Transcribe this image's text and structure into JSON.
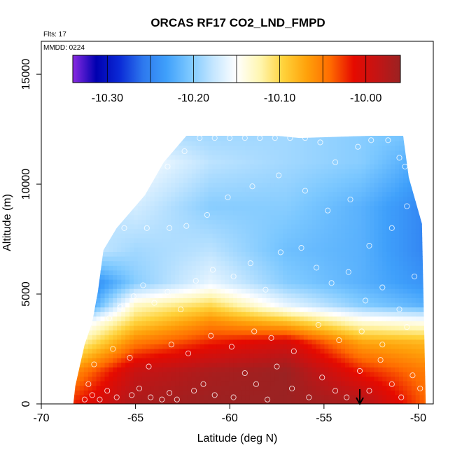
{
  "chart_data": {
    "type": "heatmap",
    "title": "ORCAS RF17 CO2_LND_FMPD",
    "subtitle_flights": "Flts: 17",
    "subtitle_date": "MMDD: 0224",
    "xlabel": "Latitude (deg N)",
    "ylabel": "Altitude (m)",
    "xlim": [
      -70,
      -49.2
    ],
    "ylim": [
      0,
      16500
    ],
    "x_ticks": [
      -70,
      -65,
      -60,
      -55,
      -50
    ],
    "x_tick_labels": [
      "-70",
      "-65",
      "-60",
      "-55",
      "-50"
    ],
    "y_ticks": [
      0,
      5000,
      10000,
      15000
    ],
    "y_tick_labels": [
      "0",
      "5000",
      "10000",
      "15000"
    ],
    "colorbar": {
      "range": [
        -10.34,
        -9.96
      ],
      "ticks": [
        -10.3,
        -10.2,
        -10.1,
        -10.0
      ],
      "tick_labels": [
        "-10.30",
        "-10.20",
        "-10.10",
        "-10.00"
      ],
      "colors": [
        "#8a2be2",
        "#0000b0",
        "#0a2ad6",
        "#2d78ee",
        "#3fa0fb",
        "#7cc8ff",
        "#c4e6ff",
        "#ffffff",
        "#fff6b0",
        "#ffd23a",
        "#ffa10a",
        "#ff6b00",
        "#e60a00",
        "#c41414",
        "#9b2222"
      ],
      "dividers": [
        -10.3,
        -10.25,
        -10.2,
        -10.15,
        -10.1,
        -10.05,
        -10.0
      ]
    },
    "domain_top": [
      [
        -68.3,
        0
      ],
      [
        -68.2,
        800
      ],
      [
        -67.7,
        2700
      ],
      [
        -67.3,
        3700
      ],
      [
        -67.0,
        5100
      ],
      [
        -66.7,
        7000
      ],
      [
        -66.0,
        8000
      ],
      [
        -64.5,
        9500
      ],
      [
        -63.5,
        11000
      ],
      [
        -62.3,
        12200
      ],
      [
        -57.5,
        12200
      ],
      [
        -56.3,
        12100
      ],
      [
        -52.5,
        12200
      ],
      [
        -50.8,
        12200
      ],
      [
        -50.5,
        10300
      ],
      [
        -49.8,
        8200
      ],
      [
        -49.6,
        0
      ]
    ],
    "field_bands": [
      {
        "alt": 0,
        "values": [
          -10.02,
          -9.97,
          -9.96,
          -9.96,
          -9.97,
          -10.04
        ]
      },
      {
        "alt": 1500,
        "values": [
          -10.06,
          -9.99,
          -9.97,
          -9.96,
          -10.02,
          -10.05
        ]
      },
      {
        "alt": 2800,
        "values": [
          -10.13,
          -10.05,
          -10.02,
          -10.0,
          -10.07,
          -10.08
        ]
      },
      {
        "alt": 3800,
        "values": [
          -10.18,
          -10.1,
          -10.06,
          -10.09,
          -10.14,
          -10.15
        ]
      },
      {
        "alt": 4500,
        "values": [
          -10.27,
          -10.13,
          -10.1,
          -10.16,
          -10.2,
          -10.22
        ]
      },
      {
        "alt": 5500,
        "values": [
          -10.27,
          -10.2,
          -10.16,
          -10.2,
          -10.22,
          -10.24
        ]
      },
      {
        "alt": 7000,
        "values": [
          -10.17,
          -10.19,
          -10.18,
          -10.21,
          -10.22,
          -10.25
        ]
      },
      {
        "alt": 9000,
        "values": [
          -10.19,
          -10.17,
          -10.2,
          -10.2,
          -10.22,
          -10.25
        ]
      },
      {
        "alt": 11000,
        "values": [
          -10.14,
          -10.15,
          -10.18,
          -10.19,
          -10.2,
          -10.23
        ]
      },
      {
        "alt": 12200,
        "values": [
          -10.17,
          -10.18,
          -10.19,
          -10.19,
          -10.2,
          -10.21
        ]
      }
    ],
    "field_band_latitudes": [
      -68.3,
      -65,
      -61,
      -57,
      -53,
      -49.6
    ],
    "sample_points": [
      [
        -67.7,
        200
      ],
      [
        -67.3,
        400
      ],
      [
        -66.9,
        200
      ],
      [
        -66.5,
        600
      ],
      [
        -67.5,
        900
      ],
      [
        -66.0,
        300
      ],
      [
        -65.2,
        400
      ],
      [
        -64.8,
        700
      ],
      [
        -64.2,
        300
      ],
      [
        -63.6,
        200
      ],
      [
        -63.2,
        500
      ],
      [
        -62.8,
        200
      ],
      [
        -61.9,
        600
      ],
      [
        -61.4,
        900
      ],
      [
        -60.8,
        400
      ],
      [
        -59.8,
        300
      ],
      [
        -59.2,
        1400
      ],
      [
        -58.6,
        900
      ],
      [
        -58.0,
        200
      ],
      [
        -57.5,
        1700
      ],
      [
        -56.7,
        700
      ],
      [
        -55.8,
        300
      ],
      [
        -55.1,
        1200
      ],
      [
        -54.4,
        600
      ],
      [
        -53.8,
        300
      ],
      [
        -53.1,
        1500
      ],
      [
        -52.6,
        600
      ],
      [
        -52.0,
        2000
      ],
      [
        -51.4,
        900
      ],
      [
        -50.9,
        300
      ],
      [
        -50.3,
        1300
      ],
      [
        -49.9,
        700
      ],
      [
        -67.2,
        1800
      ],
      [
        -66.2,
        2500
      ],
      [
        -65.3,
        2100
      ],
      [
        -64.3,
        1700
      ],
      [
        -63.1,
        2700
      ],
      [
        -62.2,
        2300
      ],
      [
        -61.0,
        3100
      ],
      [
        -59.9,
        2600
      ],
      [
        -58.7,
        3300
      ],
      [
        -57.8,
        3000
      ],
      [
        -56.6,
        2400
      ],
      [
        -55.3,
        3600
      ],
      [
        -54.2,
        2900
      ],
      [
        -53.0,
        3300
      ],
      [
        -51.9,
        2700
      ],
      [
        -50.6,
        3500
      ],
      [
        -66.4,
        3900
      ],
      [
        -65.8,
        4400
      ],
      [
        -65.1,
        4900
      ],
      [
        -64.6,
        5400
      ],
      [
        -64.0,
        4600
      ],
      [
        -63.3,
        5100
      ],
      [
        -62.6,
        4300
      ],
      [
        -61.8,
        5600
      ],
      [
        -60.9,
        6100
      ],
      [
        -59.8,
        5800
      ],
      [
        -58.9,
        6400
      ],
      [
        -58.1,
        5200
      ],
      [
        -57.3,
        6900
      ],
      [
        -56.2,
        7100
      ],
      [
        -55.4,
        6200
      ],
      [
        -54.6,
        5500
      ],
      [
        -53.7,
        6000
      ],
      [
        -52.8,
        4700
      ],
      [
        -51.9,
        5300
      ],
      [
        -51.0,
        4300
      ],
      [
        -50.2,
        5800
      ],
      [
        -66.8,
        7600
      ],
      [
        -65.6,
        8000
      ],
      [
        -64.4,
        8000
      ],
      [
        -63.2,
        8000
      ],
      [
        -62.3,
        8100
      ],
      [
        -61.2,
        8600
      ],
      [
        -60.1,
        9400
      ],
      [
        -58.8,
        9900
      ],
      [
        -57.4,
        10400
      ],
      [
        -56.0,
        9700
      ],
      [
        -54.8,
        8800
      ],
      [
        -53.6,
        9300
      ],
      [
        -52.6,
        7200
      ],
      [
        -51.4,
        8000
      ],
      [
        -50.6,
        9000
      ],
      [
        -50.1,
        10300
      ],
      [
        -64.6,
        9800
      ],
      [
        -63.3,
        10800
      ],
      [
        -62.4,
        11500
      ],
      [
        -61.6,
        12100
      ],
      [
        -60.8,
        12100
      ],
      [
        -60.0,
        12100
      ],
      [
        -59.2,
        12100
      ],
      [
        -58.4,
        12100
      ],
      [
        -57.6,
        12100
      ],
      [
        -56.8,
        12100
      ],
      [
        -56.0,
        12100
      ],
      [
        -55.2,
        11900
      ],
      [
        -54.4,
        11000
      ],
      [
        -53.2,
        11700
      ],
      [
        -52.5,
        12000
      ],
      [
        -51.6,
        12000
      ],
      [
        -51.0,
        11200
      ],
      [
        -50.7,
        10800
      ]
    ],
    "arrow_marker_lat": -53.1
  }
}
